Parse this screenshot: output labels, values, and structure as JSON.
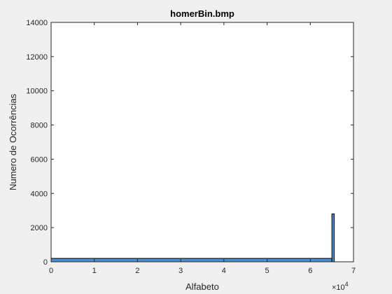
{
  "chart_data": {
    "type": "bar",
    "title": "homerBin.bmp",
    "xlabel": "Alfabeto",
    "ylabel": "Numero de Ocorrências",
    "xlim": [
      0,
      70000
    ],
    "ylim": [
      0,
      14000
    ],
    "x_ticks": [
      0,
      10000,
      20000,
      30000,
      40000,
      50000,
      60000,
      70000
    ],
    "x_tick_labels": [
      "0",
      "1",
      "2",
      "3",
      "4",
      "5",
      "6",
      "7"
    ],
    "x_exponent_label": "×10",
    "x_exponent_power": "4",
    "y_ticks": [
      0,
      2000,
      4000,
      6000,
      8000,
      10000,
      12000,
      14000
    ],
    "y_tick_labels": [
      "0",
      "2000",
      "4000",
      "6000",
      "8000",
      "10000",
      "12000",
      "14000"
    ],
    "bars": [
      {
        "x_start": 0,
        "x_end": 65000,
        "value": 200
      },
      {
        "x_start": 65000,
        "x_end": 65536,
        "value": 2800
      }
    ],
    "bar_color": "#4f8fc9",
    "edge_color": "#000000",
    "grid": false,
    "legend": "none"
  }
}
